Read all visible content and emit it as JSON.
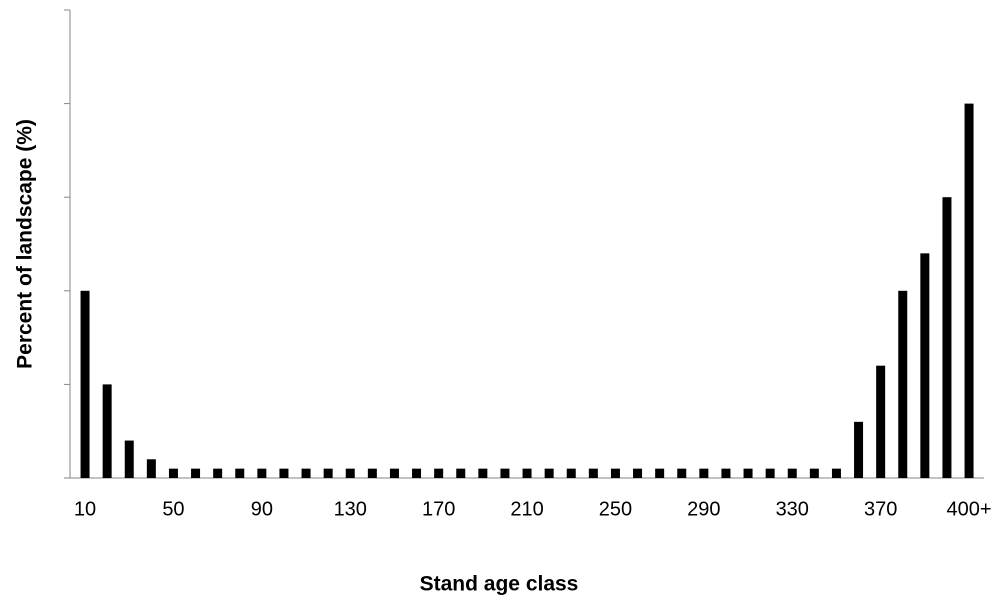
{
  "chart_data": {
    "type": "bar",
    "x_label": "Stand age class",
    "y_label": "Percent of landscape (%)",
    "categories": [
      "10",
      null,
      null,
      null,
      "50",
      null,
      null,
      null,
      "90",
      null,
      null,
      null,
      "130",
      null,
      null,
      null,
      "170",
      null,
      null,
      null,
      "210",
      null,
      null,
      null,
      "250",
      null,
      null,
      null,
      "290",
      null,
      null,
      null,
      "330",
      null,
      null,
      null,
      "370",
      null,
      null,
      null,
      "400+"
    ],
    "values": [
      2,
      1,
      0.4,
      0.2,
      0.1,
      0.1,
      0.1,
      0.1,
      0.1,
      0.1,
      0.1,
      0.1,
      0.1,
      0.1,
      0.1,
      0.1,
      0.1,
      0.1,
      0.1,
      0.1,
      0.1,
      0.1,
      0.1,
      0.1,
      0.1,
      0.1,
      0.1,
      0.1,
      0.1,
      0.1,
      0.1,
      0.1,
      0.1,
      0.1,
      0.1,
      0.6,
      1.2,
      2,
      2.4,
      3,
      4
    ],
    "color": "#000000",
    "ylim": [
      0,
      5
    ],
    "yticks": [
      0,
      1,
      2,
      3,
      4,
      5
    ]
  }
}
